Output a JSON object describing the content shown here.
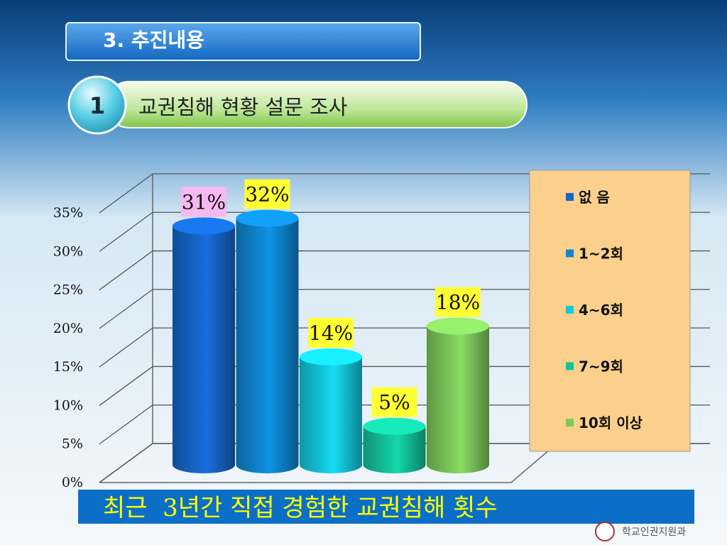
{
  "header": {
    "section_title": "3. 추진내용",
    "number": "1",
    "subtitle": "교권침해 현황 설문 조사"
  },
  "chart_data": {
    "type": "bar",
    "categories": [
      "없 음",
      "1~2회",
      "4~6회",
      "7~9회",
      "10회 이상"
    ],
    "values": [
      31,
      32,
      14,
      5,
      18
    ],
    "value_labels": [
      "31%",
      "32%",
      "14%",
      "5%",
      "18%"
    ],
    "colors": [
      "#1565c8",
      "#0e86d0",
      "#13c8dc",
      "#12c49a",
      "#7dc95a"
    ],
    "value_label_colors": [
      "#f7b8ef",
      "#ffff33",
      "#ffff33",
      "#ffff33",
      "#ffff33"
    ],
    "ylim": [
      0,
      35
    ],
    "yticks": [
      {
        "value": 0,
        "label": "0%"
      },
      {
        "value": 5,
        "label": "5%"
      },
      {
        "value": 10,
        "label": "10%"
      },
      {
        "value": 15,
        "label": "15%"
      },
      {
        "value": 20,
        "label": "20%"
      },
      {
        "value": 25,
        "label": "25%"
      },
      {
        "value": 30,
        "label": "30%"
      },
      {
        "value": 35,
        "label": "35%"
      }
    ],
    "grid": true,
    "legend": "right"
  },
  "caption": "최근  3년간 직접 경험한 교권침해 횟수",
  "footer": "학교인권지원과"
}
